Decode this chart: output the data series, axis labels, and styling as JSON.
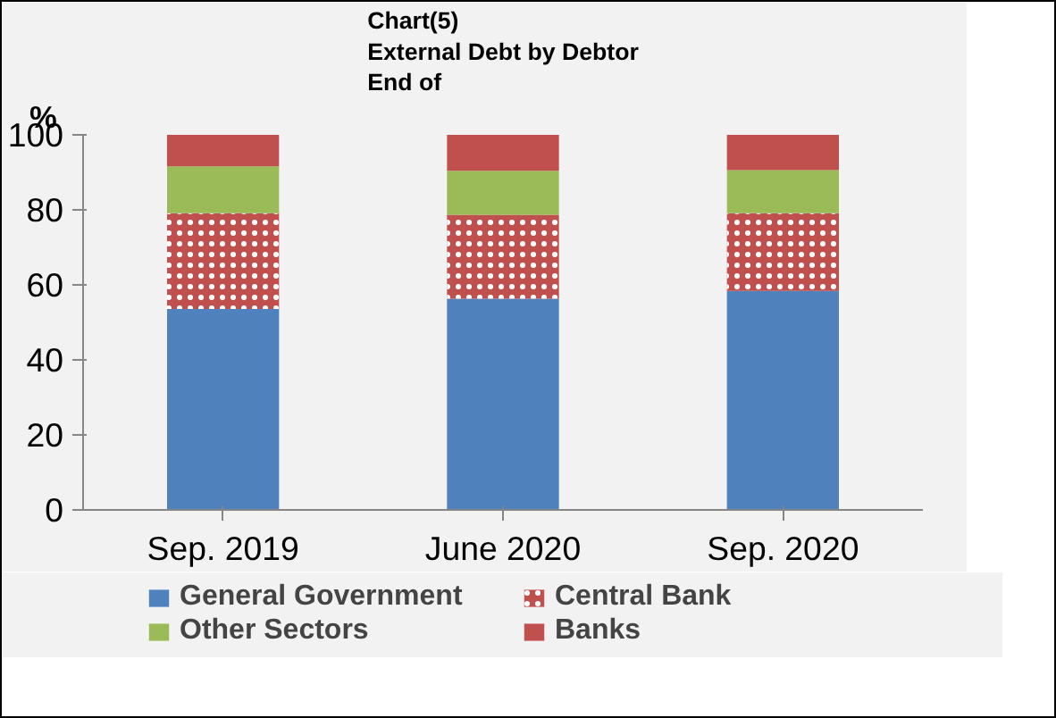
{
  "chart_data": {
    "type": "bar",
    "title": "Chart(5)\nExternal Debt by Debtor\nEnd of",
    "ylabel": "%",
    "categories": [
      "Sep. 2019",
      "June 2020",
      "Sep. 2020"
    ],
    "stacked": true,
    "ylim": [
      0,
      100
    ],
    "yticks": [
      0,
      20,
      40,
      60,
      80,
      100
    ],
    "grid": false,
    "legend": "bottom",
    "series": [
      {
        "name": "General Government",
        "color": "#4f81bd",
        "values": [
          53.6,
          56.3,
          58.4
        ]
      },
      {
        "name": "Central Bank",
        "color": "#c0504d",
        "values": [
          25.5,
          22.4,
          20.7
        ]
      },
      {
        "name": "Other Sectors",
        "color": "#9bbb59",
        "values": [
          12.5,
          11.7,
          11.5
        ]
      },
      {
        "name": "Banks",
        "color": "#c0504d",
        "values": [
          8.4,
          9.6,
          9.4
        ]
      }
    ]
  }
}
